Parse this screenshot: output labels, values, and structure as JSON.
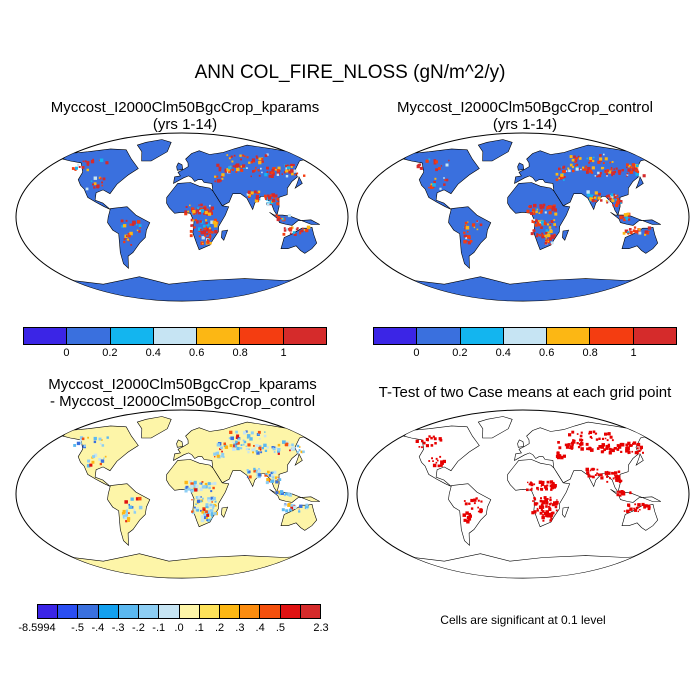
{
  "figure": {
    "title": "ANN COL_FIRE_NLOSS (gN/m^2/y)",
    "note": "Cells are significant at 0.1 level"
  },
  "panels": [
    {
      "title_line1": "Myccost_I2000Clm50BgcCrop_kparams",
      "title_line2": "(yrs 1-14)",
      "land_color": "#3a70de",
      "colorbar": {
        "colors": [
          "#3b25e6",
          "#3a70de",
          "#13b5ef",
          "#c6e4f3",
          "#fcb714",
          "#f43d11",
          "#d52b2b"
        ],
        "labels": [
          "0",
          "0.2",
          "0.4",
          "0.6",
          "0.8",
          "1"
        ]
      }
    },
    {
      "title_line1": "Myccost_I2000Clm50BgcCrop_control",
      "title_line2": "(yrs 1-14)",
      "land_color": "#3a70de",
      "colorbar": {
        "colors": [
          "#3b25e6",
          "#3a70de",
          "#13b5ef",
          "#c6e4f3",
          "#fcb714",
          "#f43d11",
          "#d52b2b"
        ],
        "labels": [
          "0",
          "0.2",
          "0.4",
          "0.6",
          "0.8",
          "1"
        ]
      }
    },
    {
      "title_line1": "Myccost_I2000Clm50BgcCrop_kparams",
      "title_line2": "- Myccost_I2000Clm50BgcCrop_control",
      "land_color": "#fdf5a8",
      "colorbar": {
        "colors": [
          "#3b25e6",
          "#2a4ef2",
          "#3a70de",
          "#13a0ef",
          "#5bb8f0",
          "#8dcef4",
          "#c6e4f3",
          "#fdf5a8",
          "#fde25a",
          "#fcb714",
          "#fb8c0f",
          "#f4500d",
          "#e01212",
          "#d52b2b"
        ],
        "labels": [
          "-8.5994",
          "-.5",
          "-.4",
          "-.3",
          "-.2",
          "-.1",
          ".0",
          ".1",
          ".2",
          ".3",
          ".4",
          ".5",
          "2.3"
        ]
      }
    },
    {
      "title_line1": "T-Test of two Case means at each grid point",
      "title_line2": "",
      "land_color": "#ffffff",
      "significant_color": "#e60000"
    }
  ]
}
